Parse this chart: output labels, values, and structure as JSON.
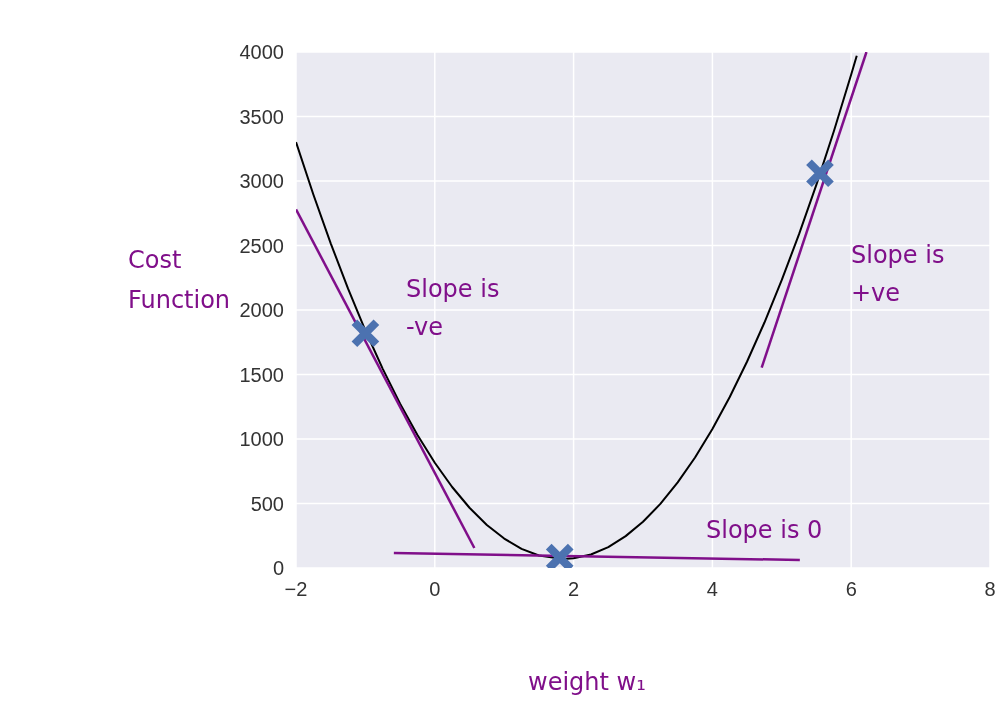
{
  "chart_data": {
    "type": "line",
    "xlabel": "weight w₁",
    "ylabel": "Cost\nFunction",
    "xlim": [
      -2,
      8
    ],
    "ylim": [
      0,
      4000
    ],
    "xticks": [
      -2,
      0,
      2,
      4,
      6,
      8
    ],
    "yticks": [
      0,
      500,
      1000,
      1500,
      2000,
      2500,
      3000,
      3500,
      4000
    ],
    "grid": true,
    "series": [
      {
        "color": "#000000",
        "marker": "none",
        "line_style": "solid",
        "x": [
          -2,
          -1.75,
          -1.5,
          -1.25,
          -1,
          -0.75,
          -0.5,
          -0.25,
          0,
          0.25,
          0.5,
          0.75,
          1,
          1.25,
          1.5,
          1.85,
          2,
          2.25,
          2.5,
          2.75,
          3,
          3.25,
          3.5,
          3.75,
          4,
          4.25,
          4.5,
          4.75,
          5,
          5.25,
          5.5,
          5.75,
          6,
          6.08
        ],
        "values": [
          3301,
          2895,
          2517,
          2165,
          1841,
          1544,
          1274,
          1031,
          816,
          628,
          467,
          334,
          228,
          148,
          97,
          70,
          75,
          105,
          162,
          247,
          358,
          497,
          664,
          857,
          1078,
          1326,
          1601,
          1903,
          2233,
          2590,
          2974,
          3386,
          3825,
          3971
        ]
      },
      {
        "type": "line",
        "color": "#800f8a",
        "marker": "none",
        "line_style": "solid",
        "x": [
          -2,
          0.57
        ],
        "values": [
          2780,
          155
        ]
      },
      {
        "type": "line",
        "color": "#800f8a",
        "marker": "none",
        "line_style": "solid",
        "x": [
          4.71,
          6.22
        ],
        "values": [
          1553,
          4000
        ]
      },
      {
        "type": "line",
        "color": "#800f8a",
        "marker": "none",
        "line_style": "solid",
        "x": [
          -0.59,
          5.26
        ],
        "values": [
          117,
          62
        ]
      },
      {
        "type": "scatter",
        "color": "#4c72b0",
        "marker": "cross",
        "x": [
          -1,
          1.8,
          5.55
        ],
        "values": [
          1820,
          80,
          3060
        ]
      }
    ],
    "annotations": [
      "Slope is\n-ve",
      "Slope is\n+ve",
      "Slope is 0"
    ]
  }
}
